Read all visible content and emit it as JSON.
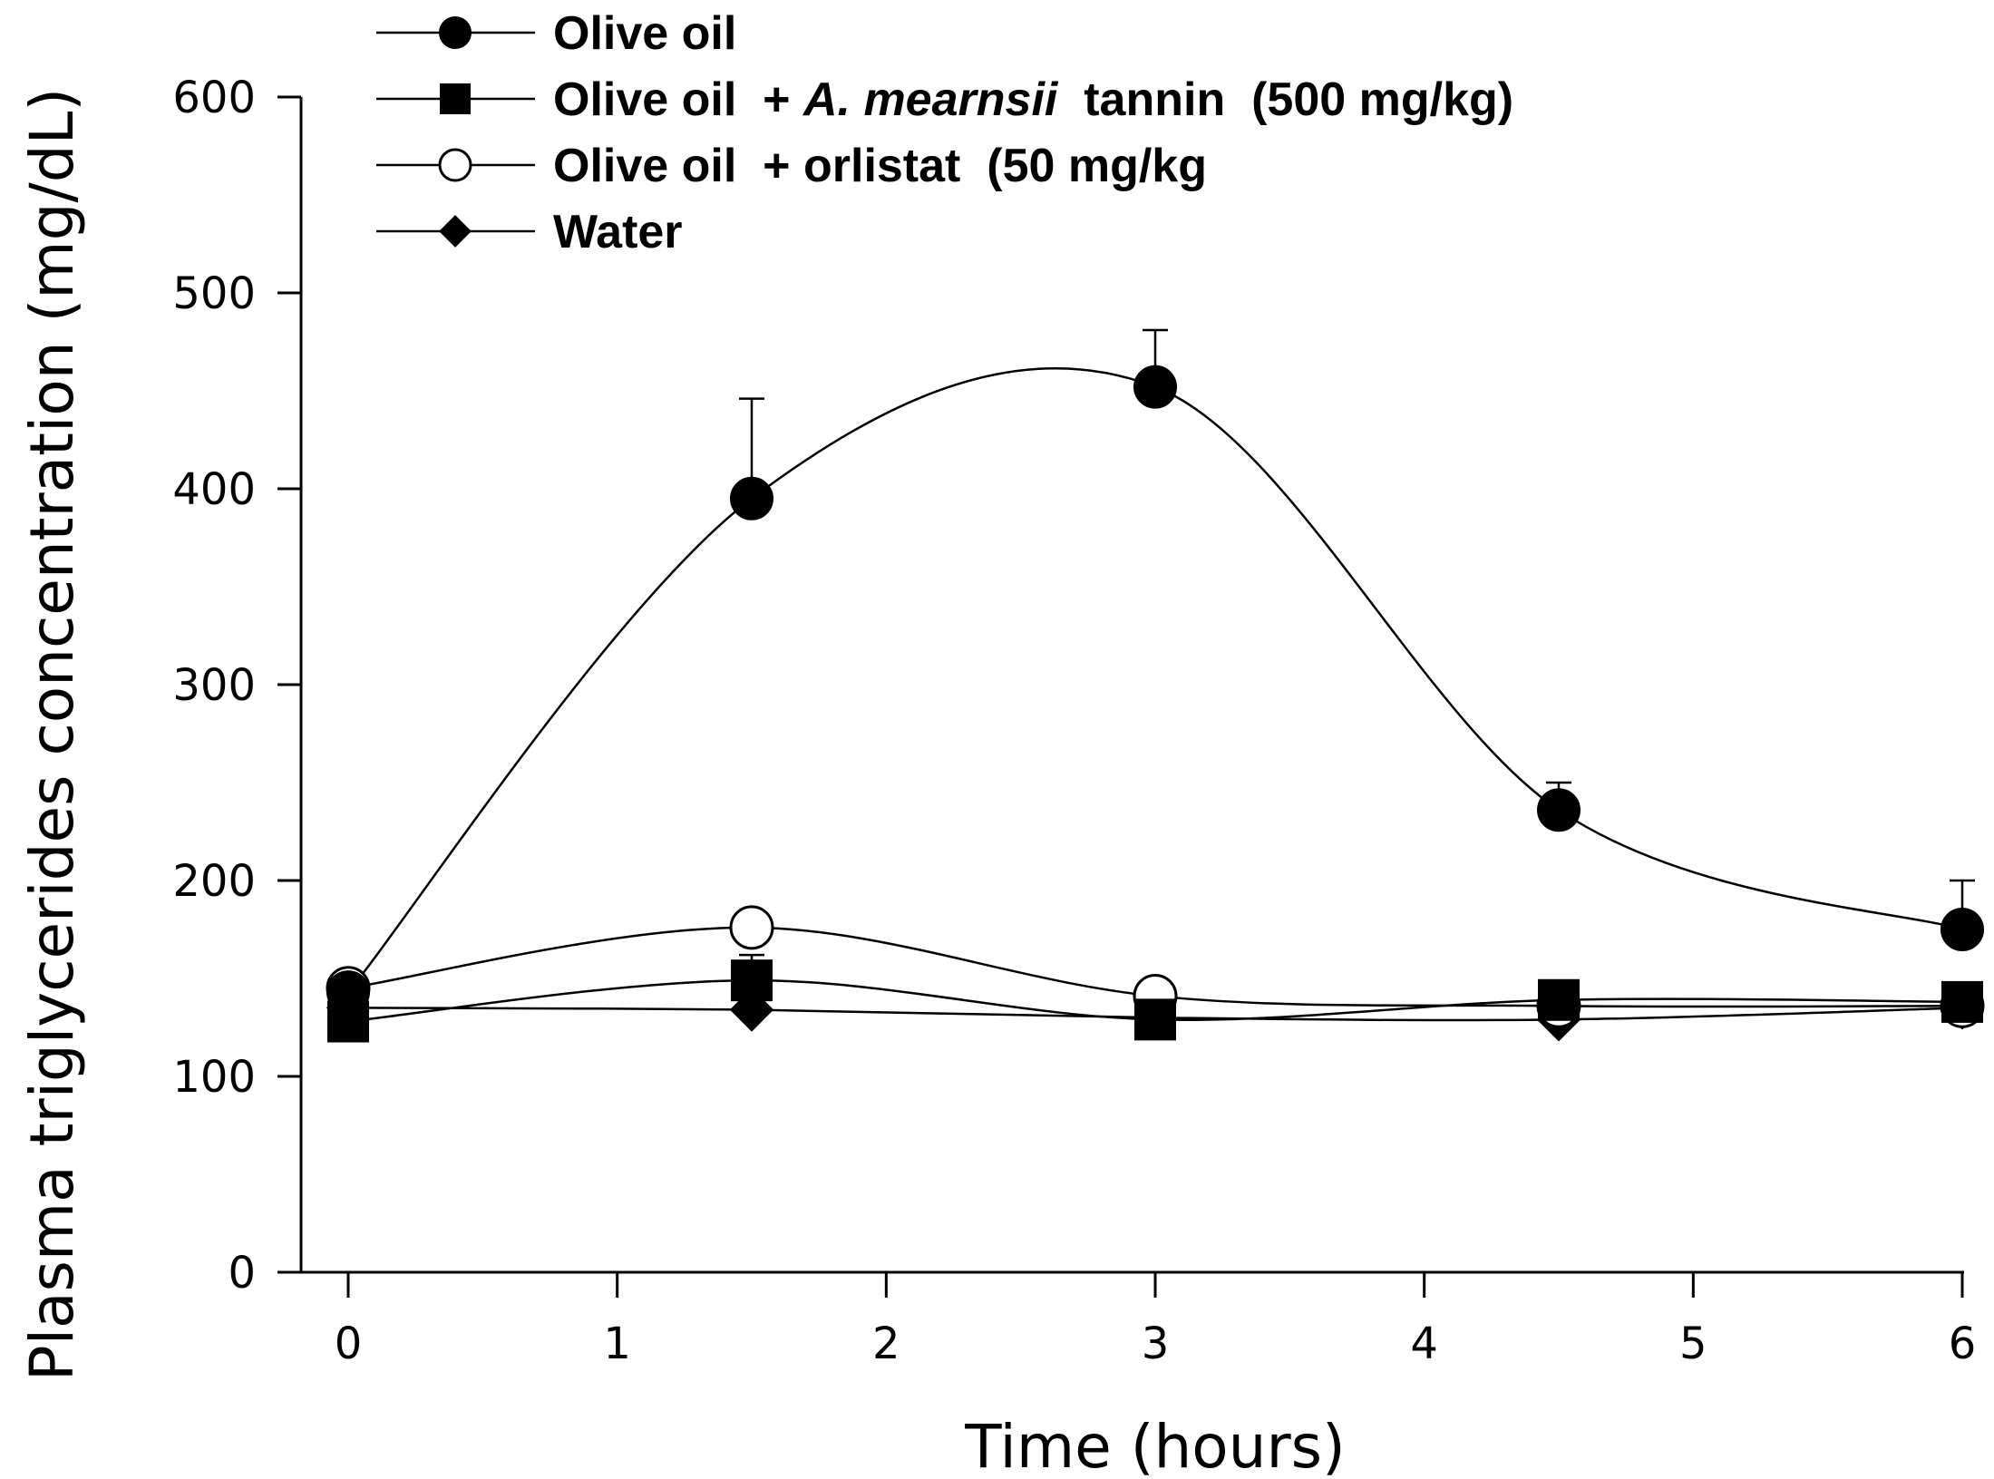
{
  "chart_data": {
    "type": "line",
    "title": "",
    "xlabel": "Time (hours)",
    "ylabel": "Plasma triglycerides concentration (mg/dL)",
    "xlim": [
      0,
      6
    ],
    "ylim": [
      0,
      600
    ],
    "xticks": [
      0,
      1,
      2,
      3,
      4,
      5,
      6
    ],
    "yticks": [
      0,
      100,
      200,
      300,
      400,
      500,
      600
    ],
    "x": [
      0,
      1.5,
      3,
      4.5,
      6
    ],
    "legend_position": "top-left",
    "series": [
      {
        "name": "Olive oil",
        "marker": "filled-circle",
        "values": [
          143,
          395,
          452,
          236,
          175
        ],
        "error_upper": [
          0,
          51,
          29,
          14,
          25
        ]
      },
      {
        "name": "Olive oil + A. mearnsii tannin (500 mg/kg)",
        "legend_parts": [
          "Olive oil  + ",
          "A. mearnsii",
          "  tannin  (500 mg/kg)"
        ],
        "marker": "filled-square",
        "values": [
          128,
          149,
          129,
          139,
          138
        ],
        "error_upper": [
          0,
          13,
          0,
          0,
          0
        ]
      },
      {
        "name": "Olive oil + orlistat (50 mg/kg",
        "legend_parts": [
          "Olive oil  + orlistat  (50 mg/kg"
        ],
        "marker": "open-circle",
        "values": [
          145,
          176,
          141,
          136,
          136
        ],
        "error_upper": [
          0,
          0,
          0,
          0,
          0
        ]
      },
      {
        "name": "Water",
        "marker": "filled-diamond",
        "values": [
          135,
          134,
          130,
          129,
          135
        ],
        "error_upper": [
          0,
          0,
          0,
          0,
          0
        ]
      }
    ]
  }
}
